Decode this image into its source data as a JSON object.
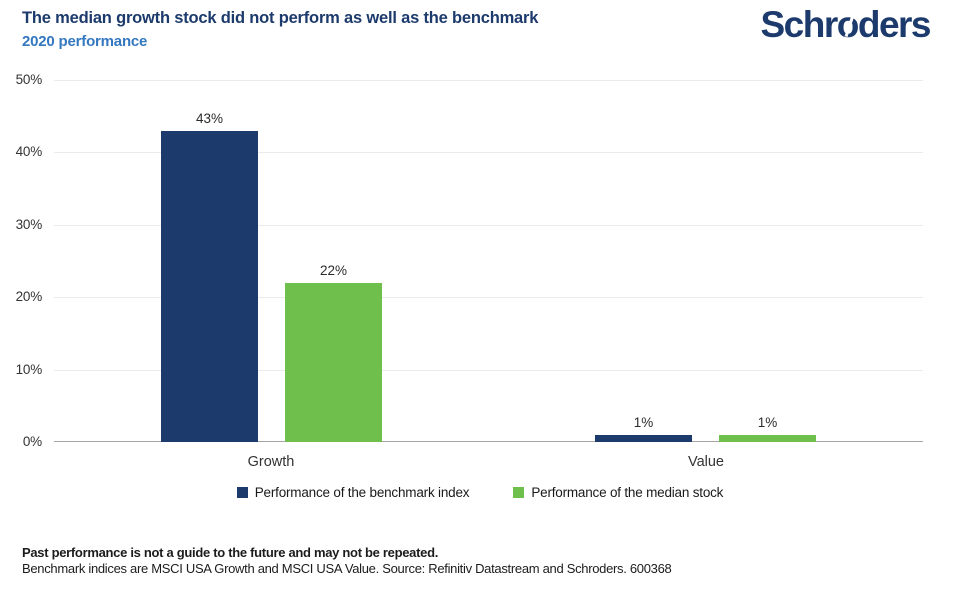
{
  "header": {
    "title": "The median growth stock did not perform as well as the benchmark",
    "subtitle": "2020 performance",
    "logo": {
      "pre": "Schr",
      "o": "o",
      "post": "ders"
    }
  },
  "chart_data": {
    "type": "bar",
    "title": "The median growth stock did not perform as well as the benchmark",
    "subtitle": "2020 performance",
    "categories": [
      "Growth",
      "Value"
    ],
    "series": [
      {
        "name": "Performance of the benchmark index",
        "color": "#1c3a6b",
        "values": [
          43,
          1
        ],
        "labels": [
          "43%",
          "1%"
        ]
      },
      {
        "name": "Performance of the median stock",
        "color": "#6ebf4b",
        "values": [
          22,
          1
        ],
        "labels": [
          "22%",
          "1%"
        ]
      }
    ],
    "xlabel": "",
    "ylabel": "",
    "ylim": [
      0,
      50
    ],
    "yticks": [
      0,
      10,
      20,
      30,
      40,
      50
    ],
    "ytick_labels": [
      "0%",
      "10%",
      "20%",
      "30%",
      "40%",
      "50%"
    ],
    "grid": true,
    "legend_position": "bottom"
  },
  "footer": {
    "disclaimer_bold": "Past performance is not a guide to the future and may not be repeated.",
    "source": "Benchmark indices are MSCI USA Growth and MSCI USA Value. Source: Refinitiv Datastream and Schroders. 600368"
  },
  "colors": {
    "navy": "#1c3a6b",
    "green": "#6ebf4b",
    "subtitle_blue": "#3478c0",
    "gridline": "#ebebeb",
    "axis_line": "#a6a6a6",
    "tick_text": "#333333"
  }
}
